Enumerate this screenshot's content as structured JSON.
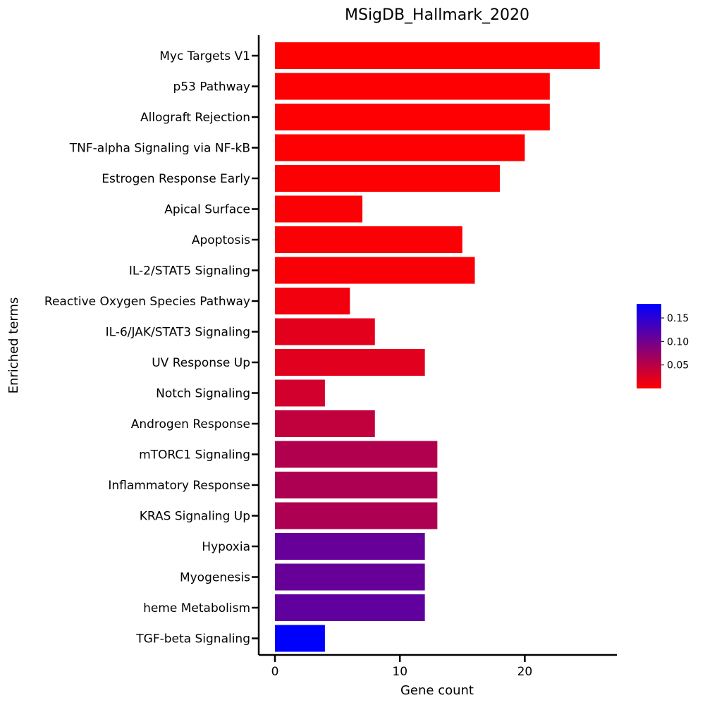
{
  "chart_data": {
    "type": "bar",
    "orientation": "horizontal",
    "title": "MSigDB_Hallmark_2020",
    "xlabel": "Gene count",
    "ylabel": "Enriched terms",
    "xlim": [
      0,
      27
    ],
    "xticks": [
      0,
      10,
      20
    ],
    "categories": [
      "Myc Targets V1",
      "p53 Pathway",
      "Allograft Rejection",
      "TNF-alpha Signaling via NF-kB",
      "Estrogen Response Early",
      "Apical Surface",
      "Apoptosis",
      "IL-2/STAT5 Signaling",
      "Reactive Oxygen Species Pathway",
      "IL-6/JAK/STAT3 Signaling",
      "UV Response Up",
      "Notch Signaling",
      "Androgen Response",
      "mTORC1 Signaling",
      "Inflammatory Response",
      "KRAS Signaling Up",
      "Hypoxia",
      "Myogenesis",
      "heme Metabolism",
      "TGF-beta Signaling"
    ],
    "values": [
      26,
      22,
      22,
      20,
      18,
      7,
      15,
      16,
      6,
      8,
      12,
      4,
      8,
      13,
      13,
      13,
      12,
      12,
      12,
      4
    ],
    "color_values": [
      0.0001,
      0.0005,
      0.0005,
      0.001,
      0.002,
      0.003,
      0.003,
      0.004,
      0.009,
      0.02,
      0.021,
      0.032,
      0.044,
      0.055,
      0.058,
      0.058,
      0.108,
      0.108,
      0.112,
      0.18
    ],
    "colorbar": {
      "range": [
        0,
        0.18
      ],
      "ticks": [
        0.05,
        0.1,
        0.15
      ],
      "tick_labels": [
        "0.05",
        "0.10",
        "0.15"
      ],
      "color_low": "#ff0000",
      "color_high": "#0000ff",
      "placement": "right"
    },
    "grid": false
  }
}
